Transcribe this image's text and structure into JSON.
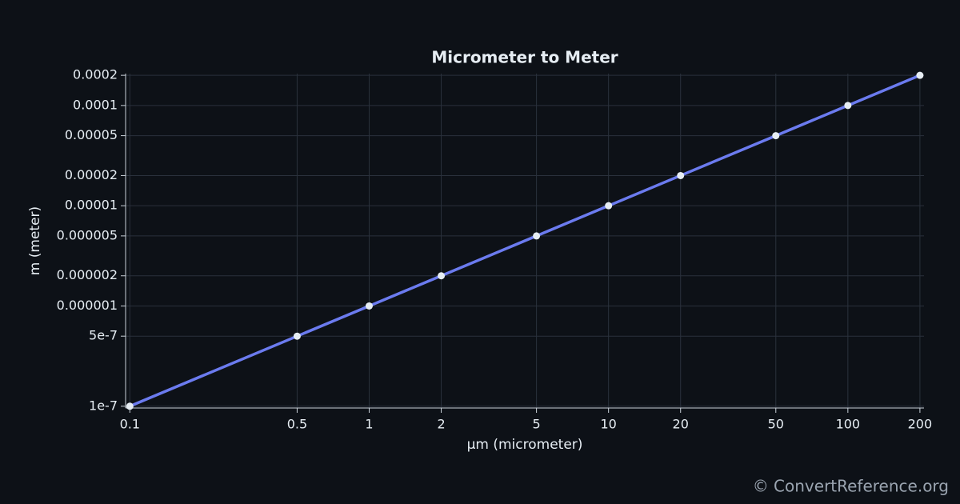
{
  "chart_data": {
    "type": "line",
    "title": "Micrometer to Meter",
    "x_label": "µm (micrometer)",
    "y_label": "m (meter)",
    "x": [
      0.1,
      0.5,
      1,
      2,
      5,
      10,
      20,
      50,
      100,
      200
    ],
    "series": [
      {
        "name": "m",
        "color": "#6b7bef",
        "values": [
          1e-07,
          5e-07,
          1e-06,
          2e-06,
          5e-06,
          1e-05,
          2e-05,
          5e-05,
          0.0001,
          0.0002
        ]
      }
    ],
    "x_log": true,
    "y_log": true,
    "xlim": [
      0.096,
      208
    ],
    "ylim": [
      9.6e-08,
      0.000208
    ],
    "xticks": [
      0.1,
      0.5,
      1,
      2,
      5,
      10,
      20,
      50,
      100,
      200
    ],
    "yticks": [
      1e-07,
      5e-07,
      1e-06,
      2e-06,
      5e-06,
      1e-05,
      2e-05,
      5e-05,
      0.0001,
      0.0002
    ],
    "grid": true,
    "source": "© ConvertReference.org"
  }
}
